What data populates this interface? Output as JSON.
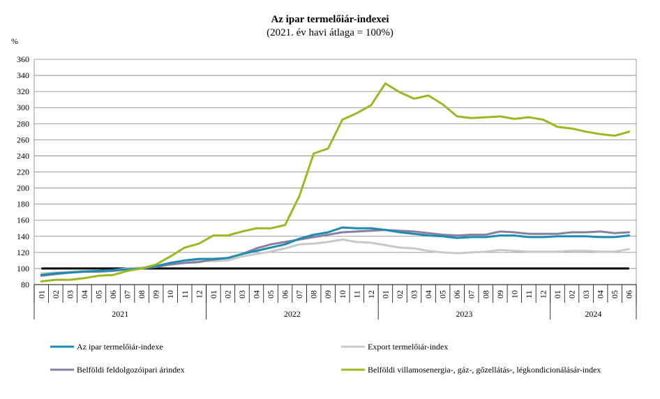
{
  "chart_data": {
    "type": "line",
    "title": "Az ipar termelőiár-indexei",
    "subtitle": "(2021. év havi átlaga = 100%)",
    "ylabel": "%",
    "xlabel": "",
    "ylim": [
      80,
      360
    ],
    "yticks": [
      80,
      100,
      120,
      140,
      160,
      180,
      200,
      220,
      240,
      260,
      280,
      300,
      320,
      340,
      360
    ],
    "grid": true,
    "legend_position": "bottom",
    "month_labels": [
      "01",
      "02",
      "03",
      "04",
      "05",
      "06",
      "07",
      "08",
      "09",
      "10",
      "11",
      "12",
      "01",
      "02",
      "03",
      "04",
      "05",
      "06",
      "07",
      "08",
      "09",
      "10",
      "11",
      "12",
      "01",
      "02",
      "03",
      "04",
      "05",
      "06",
      "07",
      "08",
      "09",
      "10",
      "11",
      "12",
      "01",
      "02",
      "03",
      "04",
      "05",
      "06"
    ],
    "years": [
      {
        "label": "2021",
        "months": 12
      },
      {
        "label": "2022",
        "months": 12
      },
      {
        "label": "2023",
        "months": 12
      },
      {
        "label": "2024",
        "months": 6
      }
    ],
    "reference_line": 100,
    "series": [
      {
        "name": "Export termelőiár-index",
        "color": "#c8c8c8",
        "values": [
          94,
          95,
          96,
          97,
          97,
          98,
          100,
          101,
          103,
          105,
          107,
          110,
          109,
          110,
          115,
          118,
          121,
          125,
          130,
          131,
          133,
          136,
          133,
          132,
          129,
          126,
          125,
          122,
          120,
          119,
          120,
          121,
          123,
          122,
          121,
          121,
          121,
          122,
          122,
          121,
          121,
          124
        ]
      },
      {
        "name": "Belföldi feldolgozóipari árindex",
        "color": "#8a7fa0",
        "values": [
          91,
          93,
          95,
          96,
          96,
          97,
          99,
          100,
          102,
          105,
          107,
          108,
          111,
          113,
          118,
          125,
          130,
          133,
          136,
          139,
          142,
          145,
          146,
          147,
          148,
          147,
          146,
          144,
          142,
          141,
          142,
          142,
          146,
          145,
          143,
          143,
          143,
          145,
          145,
          146,
          144,
          145
        ]
      },
      {
        "name": "Az ipar termelőiár-indexe",
        "color": "#1b8db0",
        "values": [
          92,
          94,
          95,
          96,
          97,
          98,
          99,
          100,
          103,
          107,
          110,
          112,
          112,
          113,
          118,
          122,
          126,
          130,
          137,
          142,
          145,
          151,
          150,
          150,
          148,
          145,
          143,
          141,
          140,
          138,
          139,
          139,
          141,
          141,
          139,
          139,
          140,
          140,
          140,
          139,
          139,
          141
        ]
      },
      {
        "name": "Belföldi villamosenergia-, gáz-, gőzellátás-, légkondicionálásár-index",
        "color": "#9ab820",
        "values": [
          84,
          86,
          86,
          88,
          91,
          92,
          97,
          100,
          105,
          115,
          126,
          131,
          141,
          141,
          146,
          150,
          150,
          154,
          190,
          243,
          249,
          285,
          293,
          303,
          330,
          319,
          311,
          315,
          304,
          289,
          287,
          288,
          289,
          286,
          288,
          285,
          276,
          274,
          270,
          267,
          265,
          270
        ]
      }
    ]
  }
}
